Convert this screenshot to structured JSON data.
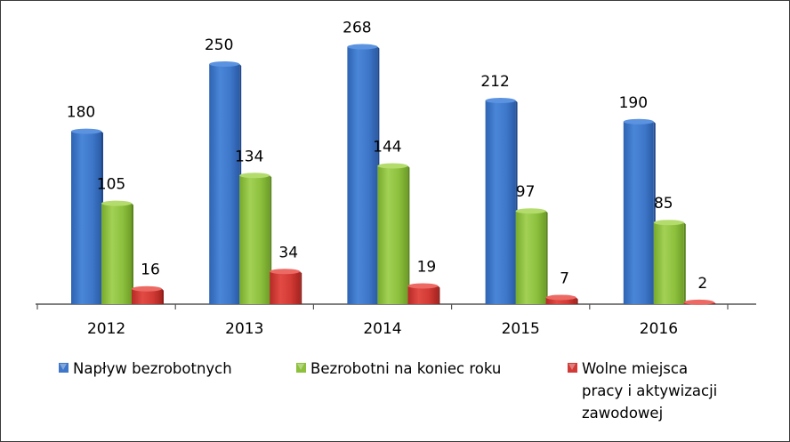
{
  "chart_data": {
    "type": "bar",
    "title": "",
    "xlabel": "",
    "ylabel": "",
    "categories": [
      "2012",
      "2013",
      "2014",
      "2015",
      "2016"
    ],
    "series": [
      {
        "name": "Napływ bezrobotnych",
        "values": [
          180,
          250,
          268,
          212,
          190
        ],
        "color": "#3E77C9"
      },
      {
        "name": "Bezrobotni na koniec roku",
        "values": [
          105,
          134,
          144,
          97,
          85
        ],
        "color": "#8DC03D"
      },
      {
        "name": "Wolne miejsca pracy i aktywizacji zawodowej",
        "values": [
          16,
          34,
          19,
          7,
          2
        ],
        "color": "#D23A35"
      }
    ],
    "ylim": [
      0,
      300
    ],
    "grid": false,
    "legend_position": "bottom"
  },
  "legend": {
    "items": [
      {
        "label": "Napływ bezrobotnych"
      },
      {
        "label": "Bezrobotni na koniec roku"
      },
      {
        "label_lines": [
          "Wolne miejsca",
          "pracy i aktywizacji",
          "zawodowej"
        ]
      }
    ]
  }
}
